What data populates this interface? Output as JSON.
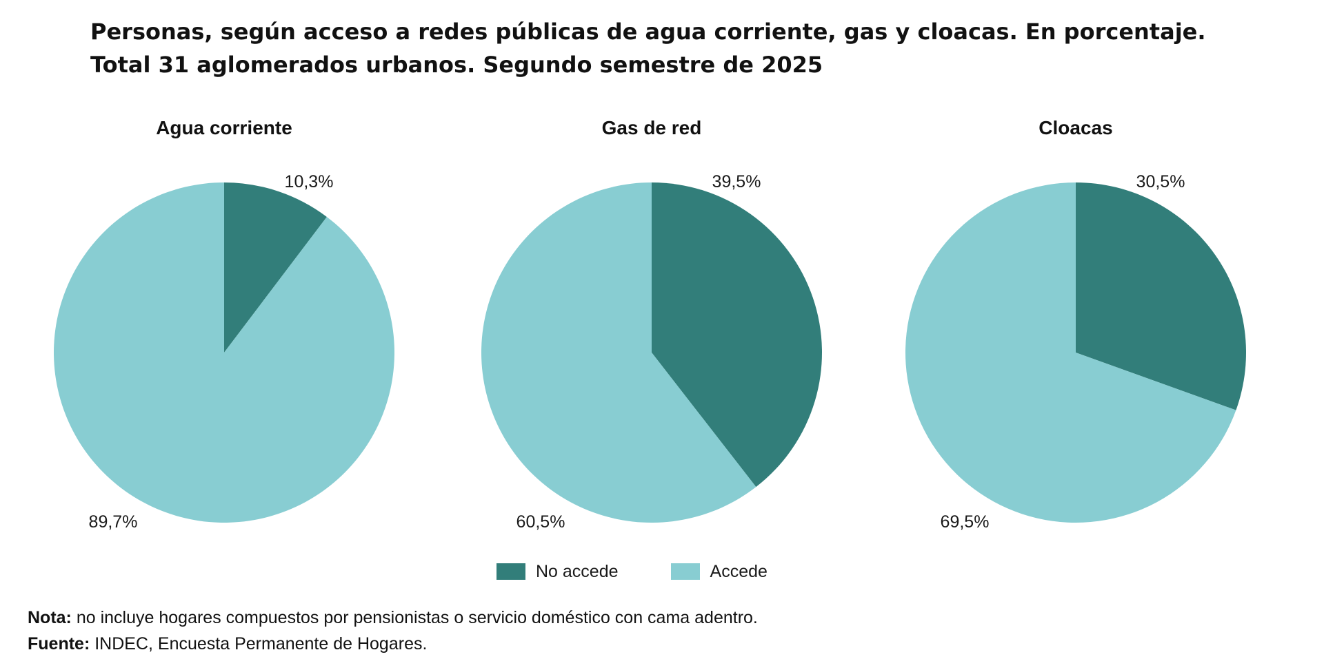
{
  "title": {
    "line1": "Personas, según acceso a redes públicas de agua corriente, gas y cloacas. En porcentaje.",
    "line2": "Total 31 aglomerados urbanos. Segundo semestre de 2025"
  },
  "colors": {
    "no_accede": "#327e7a",
    "accede": "#88cdd2"
  },
  "chart_data": [
    {
      "type": "pie",
      "title": "Agua corriente",
      "slices": [
        {
          "name": "No accede",
          "value": 10.3,
          "label": "10,3%"
        },
        {
          "name": "Accede",
          "value": 89.7,
          "label": "89,7%"
        }
      ]
    },
    {
      "type": "pie",
      "title": "Gas de red",
      "slices": [
        {
          "name": "No accede",
          "value": 39.5,
          "label": "39,5%"
        },
        {
          "name": "Accede",
          "value": 60.5,
          "label": "60,5%"
        }
      ]
    },
    {
      "type": "pie",
      "title": "Cloacas",
      "slices": [
        {
          "name": "No accede",
          "value": 30.5,
          "label": "30,5%"
        },
        {
          "name": "Accede",
          "value": 69.5,
          "label": "69,5%"
        }
      ]
    }
  ],
  "legend": {
    "items": [
      {
        "label": "No accede"
      },
      {
        "label": "Accede"
      }
    ]
  },
  "footer": {
    "nota_label": "Nota:",
    "nota_text": " no incluye hogares compuestos por pensionistas o servicio doméstico con cama adentro.",
    "fuente_label": "Fuente:",
    "fuente_text": " INDEC, Encuesta Permanente de Hogares."
  }
}
